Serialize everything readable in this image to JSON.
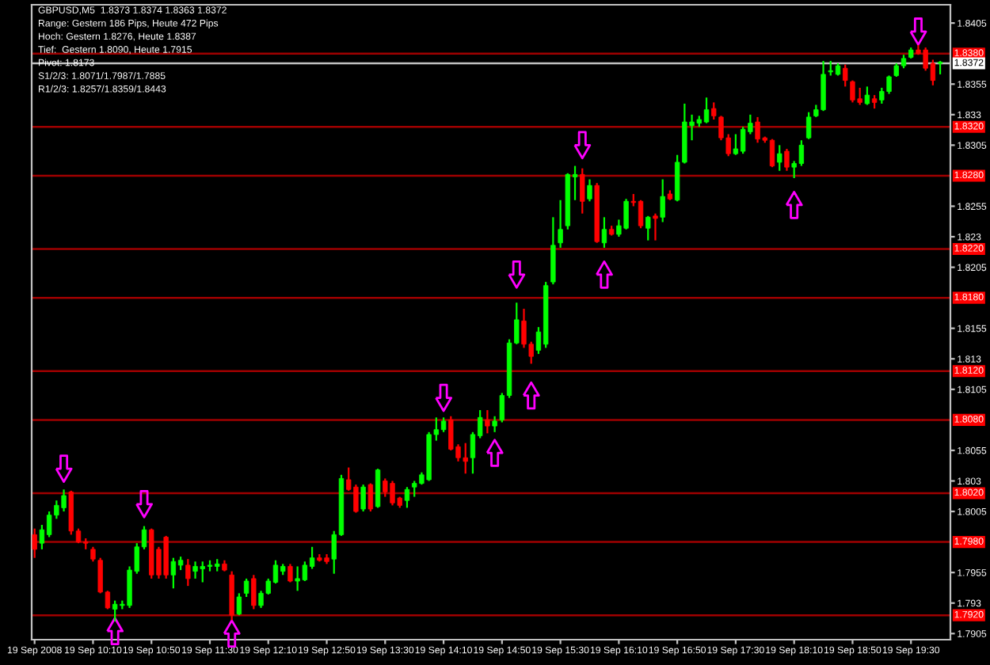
{
  "chart_data": {
    "type": "candlestick",
    "title": "GBPUSD,M5  1.8373 1.8374 1.8363 1.8372",
    "annotations": [
      "Range: Gestern 186 Pips, Heute 472 Pips",
      "Hoch: Gestern 1.8276, Heute 1.8387",
      "Tief:  Gestern 1.8090, Heute 1.7915",
      "Pivot: 1.8173",
      "S1/2/3: 1.8071/1.7987/1.7885",
      "R1/2/3: 1.8257/1.8359/1.8443"
    ],
    "categories": [
      "19 Sep 2008",
      null,
      null,
      null,
      null,
      null,
      null,
      null,
      "19 Sep 10:10",
      null,
      null,
      null,
      null,
      null,
      null,
      null,
      "19 Sep 10:50",
      null,
      null,
      null,
      null,
      null,
      null,
      null,
      "19 Sep 11:30",
      null,
      null,
      null,
      null,
      null,
      null,
      null,
      "19 Sep 12:10",
      null,
      null,
      null,
      null,
      null,
      null,
      null,
      "19 Sep 12:50",
      null,
      null,
      null,
      null,
      null,
      null,
      null,
      "19 Sep 13:30",
      null,
      null,
      null,
      null,
      null,
      null,
      null,
      "19 Sep 14:10",
      null,
      null,
      null,
      null,
      null,
      null,
      null,
      "19 Sep 14:50",
      null,
      null,
      null,
      null,
      null,
      null,
      null,
      "19 Sep 15:30",
      null,
      null,
      null,
      null,
      null,
      null,
      null,
      "19 Sep 16:10",
      null,
      null,
      null,
      null,
      null,
      null,
      null,
      "19 Sep 16:50",
      null,
      null,
      null,
      null,
      null,
      null,
      null,
      "19 Sep 17:30",
      null,
      null,
      null,
      null,
      null,
      null,
      null,
      "19 Sep 18:10",
      null,
      null,
      null,
      null,
      null,
      null,
      null,
      "19 Sep 18:50",
      null,
      null,
      null,
      null,
      null,
      null,
      null,
      "19 Sep 19:30",
      null,
      null,
      null,
      null
    ],
    "ohlc": [
      [
        1.7986,
        1.7991,
        1.7967,
        1.7974
      ],
      [
        1.7979,
        1.7994,
        1.7974,
        1.799
      ],
      [
        1.7986,
        1.8005,
        1.7984,
        1.8002
      ],
      [
        1.8002,
        1.8014,
        1.7999,
        1.801
      ],
      [
        1.8008,
        1.8023,
        1.8005,
        1.8018
      ],
      [
        1.8021,
        1.8022,
        1.7986,
        1.7989
      ],
      [
        1.7989,
        1.7991,
        1.7979,
        1.798
      ],
      [
        1.798,
        1.7983,
        1.7974,
        1.7979
      ],
      [
        1.7974,
        1.7976,
        1.7964,
        1.7966
      ],
      [
        1.7965,
        1.7967,
        1.7938,
        1.7939
      ],
      [
        1.7939,
        1.794,
        1.7925,
        1.7926
      ],
      [
        1.7925,
        1.7932,
        1.7915,
        1.7929
      ],
      [
        1.7928,
        1.7932,
        1.7925,
        1.7929
      ],
      [
        1.7928,
        1.796,
        1.7926,
        1.7957
      ],
      [
        1.7956,
        1.7979,
        1.7954,
        1.7976
      ],
      [
        1.7976,
        1.7993,
        1.7974,
        1.799
      ],
      [
        1.799,
        1.7991,
        1.795,
        1.7953
      ],
      [
        1.7974,
        1.7976,
        1.795,
        1.7953
      ],
      [
        1.7984,
        1.7985,
        1.795,
        1.7953
      ],
      [
        1.7953,
        1.7967,
        1.7942,
        1.7964
      ],
      [
        1.7961,
        1.7968,
        1.7957,
        1.7965
      ],
      [
        1.7961,
        1.7966,
        1.7944,
        1.795
      ],
      [
        1.7956,
        1.7964,
        1.795,
        1.796
      ],
      [
        1.7958,
        1.7964,
        1.7947,
        1.796
      ],
      [
        1.796,
        1.7965,
        1.7956,
        1.7961
      ],
      [
        1.796,
        1.7966,
        1.7956,
        1.7962
      ],
      [
        1.7962,
        1.7965,
        1.7956,
        1.7957
      ],
      [
        1.7953,
        1.7956,
        1.7916,
        1.792
      ],
      [
        1.7921,
        1.7938,
        1.792,
        1.7935
      ],
      [
        1.7938,
        1.795,
        1.7935,
        1.7948
      ],
      [
        1.795,
        1.7953,
        1.7925,
        1.7928
      ],
      [
        1.7928,
        1.794,
        1.7926,
        1.7938
      ],
      [
        1.7938,
        1.795,
        1.7937,
        1.7948
      ],
      [
        1.7947,
        1.7965,
        1.7946,
        1.7961
      ],
      [
        1.7956,
        1.7962,
        1.7953,
        1.796
      ],
      [
        1.796,
        1.7962,
        1.7947,
        1.7948
      ],
      [
        1.7948,
        1.796,
        1.794,
        1.795
      ],
      [
        1.7949,
        1.7964,
        1.7948,
        1.7961
      ],
      [
        1.796,
        1.7976,
        1.7958,
        1.7967
      ],
      [
        1.7967,
        1.797,
        1.7964,
        1.7965
      ],
      [
        1.7967,
        1.797,
        1.7962,
        1.7964
      ],
      [
        1.7966,
        1.7989,
        1.7954,
        1.7986
      ],
      [
        1.7986,
        1.8035,
        1.7985,
        1.8032
      ],
      [
        1.8031,
        1.8041,
        1.8022,
        1.8023
      ],
      [
        1.8025,
        1.8027,
        1.8004,
        1.8005
      ],
      [
        1.8007,
        1.8027,
        1.8005,
        1.8025
      ],
      [
        1.8027,
        1.8028,
        1.8005,
        1.8007
      ],
      [
        1.8009,
        1.804,
        1.8008,
        1.8039
      ],
      [
        1.803,
        1.8032,
        1.8017,
        1.8021
      ],
      [
        1.8028,
        1.803,
        1.801,
        1.8012
      ],
      [
        1.8016,
        1.8017,
        1.8008,
        1.801
      ],
      [
        1.8014,
        1.8025,
        1.8008,
        1.8023
      ],
      [
        1.8025,
        1.803,
        1.8017,
        1.8028
      ],
      [
        1.8028,
        1.8037,
        1.8027,
        1.8035
      ],
      [
        1.8031,
        1.807,
        1.803,
        1.8068
      ],
      [
        1.8068,
        1.8082,
        1.8063,
        1.8072
      ],
      [
        1.8072,
        1.8082,
        1.807,
        1.8079
      ],
      [
        1.808,
        1.8083,
        1.8055,
        1.8056
      ],
      [
        1.8058,
        1.806,
        1.8046,
        1.8049
      ],
      [
        1.8049,
        1.8061,
        1.8036,
        1.8046
      ],
      [
        1.8049,
        1.807,
        1.8036,
        1.8068
      ],
      [
        1.8067,
        1.8088,
        1.8065,
        1.8082
      ],
      [
        1.808,
        1.8088,
        1.8069,
        1.8075
      ],
      [
        1.8075,
        1.8083,
        1.807,
        1.8079
      ],
      [
        1.808,
        1.8102,
        1.8078,
        1.81
      ],
      [
        1.81,
        1.8146,
        1.8098,
        1.8143
      ],
      [
        1.8143,
        1.8176,
        1.8142,
        1.8162
      ],
      [
        1.8161,
        1.8171,
        1.8139,
        1.8142
      ],
      [
        1.8142,
        1.8144,
        1.8126,
        1.8132
      ],
      [
        1.8137,
        1.8156,
        1.8134,
        1.8152
      ],
      [
        1.8142,
        1.8193,
        1.8139,
        1.819
      ],
      [
        1.8193,
        1.8246,
        1.8191,
        1.8223
      ],
      [
        1.8225,
        1.826,
        1.8221,
        1.8236
      ],
      [
        1.8239,
        1.8282,
        1.8236,
        1.8281
      ],
      [
        1.8279,
        1.8288,
        1.826,
        1.8281
      ],
      [
        1.8281,
        1.8286,
        1.8249,
        1.8259
      ],
      [
        1.8261,
        1.8277,
        1.8259,
        1.8272
      ],
      [
        1.8272,
        1.8274,
        1.8225,
        1.8226
      ],
      [
        1.8225,
        1.8246,
        1.8221,
        1.8236
      ],
      [
        1.8236,
        1.8239,
        1.8231,
        1.8232
      ],
      [
        1.8232,
        1.8244,
        1.823,
        1.8239
      ],
      [
        1.8237,
        1.8261,
        1.8236,
        1.8259
      ],
      [
        1.8259,
        1.8265,
        1.8255,
        1.8258
      ],
      [
        1.8259,
        1.826,
        1.8237,
        1.8239
      ],
      [
        1.8237,
        1.8247,
        1.8227,
        1.8246
      ],
      [
        1.8247,
        1.8249,
        1.8227,
        1.8245
      ],
      [
        1.8246,
        1.8277,
        1.8242,
        1.8263
      ],
      [
        1.8265,
        1.8268,
        1.826,
        1.8261
      ],
      [
        1.826,
        1.8297,
        1.8259,
        1.8291
      ],
      [
        1.8291,
        1.8339,
        1.829,
        1.8324
      ],
      [
        1.8321,
        1.833,
        1.8309,
        1.8324
      ],
      [
        1.8323,
        1.8329,
        1.832,
        1.8326
      ],
      [
        1.8324,
        1.8344,
        1.8323,
        1.8334
      ],
      [
        1.8335,
        1.834,
        1.8326,
        1.8329
      ],
      [
        1.8328,
        1.8329,
        1.8309,
        1.8311
      ],
      [
        1.8311,
        1.8314,
        1.8296,
        1.8298
      ],
      [
        1.8298,
        1.8314,
        1.8297,
        1.8302
      ],
      [
        1.83,
        1.832,
        1.8298,
        1.8318
      ],
      [
        1.8316,
        1.833,
        1.8314,
        1.8323
      ],
      [
        1.8324,
        1.8328,
        1.8307,
        1.831
      ],
      [
        1.8311,
        1.8312,
        1.8307,
        1.8309
      ],
      [
        1.8309,
        1.831,
        1.8287,
        1.8288
      ],
      [
        1.8291,
        1.8305,
        1.8284,
        1.8298
      ],
      [
        1.83,
        1.8302,
        1.8284,
        1.8287
      ],
      [
        1.8287,
        1.8292,
        1.8278,
        1.829
      ],
      [
        1.829,
        1.8309,
        1.8288,
        1.8305
      ],
      [
        1.8311,
        1.8332,
        1.831,
        1.8328
      ],
      [
        1.8329,
        1.8338,
        1.8328,
        1.8334
      ],
      [
        1.8334,
        1.8374,
        1.8333,
        1.8363
      ],
      [
        1.8365,
        1.8374,
        1.8362,
        1.8366
      ],
      [
        1.8363,
        1.8372,
        1.8362,
        1.837
      ],
      [
        1.8368,
        1.8371,
        1.8353,
        1.8358
      ],
      [
        1.8357,
        1.8358,
        1.834,
        1.8342
      ],
      [
        1.8343,
        1.8352,
        1.8338,
        1.834
      ],
      [
        1.8339,
        1.8353,
        1.8338,
        1.8346
      ],
      [
        1.8343,
        1.8346,
        1.8335,
        1.834
      ],
      [
        1.8342,
        1.8352,
        1.8339,
        1.8349
      ],
      [
        1.8349,
        1.8362,
        1.8347,
        1.8361
      ],
      [
        1.8362,
        1.8372,
        1.8361,
        1.837
      ],
      [
        1.837,
        1.8379,
        1.8368,
        1.8376
      ],
      [
        1.8377,
        1.8385,
        1.8376,
        1.8383
      ],
      [
        1.8383,
        1.8387,
        1.8379,
        1.838
      ],
      [
        1.8383,
        1.8385,
        1.8366,
        1.8368
      ],
      [
        1.8372,
        1.8375,
        1.8354,
        1.8358
      ],
      [
        1.8373,
        1.8374,
        1.8363,
        1.8372
      ]
    ],
    "colors": [
      "#ff0000",
      "#00ff00",
      "#00ff00",
      "#00ff00",
      "#00ff00",
      "#ff0000",
      "#ff0000",
      "#ff0000",
      "#ff0000",
      "#ff0000",
      "#ff0000",
      "#00ff00",
      "#00ff00",
      "#00ff00",
      "#00ff00",
      "#00ff00",
      "#ff0000",
      "#ff0000",
      "#ff0000",
      "#00ff00",
      "#00ff00",
      "#ff0000",
      "#00ff00",
      "#00ff00",
      "#00ff00",
      "#00ff00",
      "#ff0000",
      "#ff0000",
      "#00ff00",
      "#00ff00",
      "#ff0000",
      "#00ff00",
      "#00ff00",
      "#00ff00",
      "#00ff00",
      "#ff0000",
      "#00ff00",
      "#00ff00",
      "#00ff00",
      "#ff0000",
      "#ff0000",
      "#00ff00",
      "#00ff00",
      "#ff0000",
      "#ff0000",
      "#00ff00",
      "#ff0000",
      "#00ff00",
      "#ff0000",
      "#ff0000",
      "#ff0000",
      "#00ff00",
      "#00ff00",
      "#00ff00",
      "#00ff00",
      "#00ff00",
      "#00ff00",
      "#ff0000",
      "#ff0000",
      "#ff0000",
      "#00ff00",
      "#00ff00",
      "#ff0000",
      "#00ff00",
      "#00ff00",
      "#00ff00",
      "#00ff00",
      "#ff0000",
      "#ff0000",
      "#00ff00",
      "#00ff00",
      "#00ff00",
      "#00ff00",
      "#00ff00",
      "#00ff00",
      "#ff0000",
      "#00ff00",
      "#ff0000",
      "#00ff00",
      "#ff0000",
      "#00ff00",
      "#00ff00",
      "#ff0000",
      "#ff0000",
      "#00ff00",
      "#ff0000",
      "#00ff00",
      "#ff0000",
      "#00ff00",
      "#00ff00",
      "#00ff00",
      "#00ff00",
      "#00ff00",
      "#ff0000",
      "#ff0000",
      "#ff0000",
      "#00ff00",
      "#00ff00",
      "#00ff00",
      "#ff0000",
      "#ff0000",
      "#ff0000",
      "#00ff00",
      "#ff0000",
      "#00ff00",
      "#00ff00",
      "#00ff00",
      "#00ff00",
      "#00ff00",
      "#00ff00",
      "#00ff00",
      "#ff0000",
      "#ff0000",
      "#ff0000",
      "#00ff00",
      "#ff0000",
      "#00ff00",
      "#00ff00",
      "#00ff00",
      "#00ff00",
      "#00ff00",
      "#ff0000",
      "#ff0000",
      "#ff0000",
      "#00ff00"
    ],
    "series": [
      {
        "type": "scatter",
        "color": "#ff00ff",
        "values": [
          null,
          null,
          null,
          null,
          1.804,
          null,
          null,
          null,
          null,
          null,
          null,
          1.7907,
          null,
          null,
          null,
          1.8011,
          null,
          null,
          null,
          null,
          null,
          null,
          null,
          null,
          null,
          null,
          null,
          1.7905,
          null,
          null,
          null,
          null,
          null,
          null,
          null,
          null,
          null,
          null,
          null,
          null,
          null,
          null,
          null,
          null,
          null,
          null,
          null,
          null,
          null,
          null,
          null,
          null,
          null,
          null,
          null,
          null,
          1.8098,
          null,
          null,
          null,
          null,
          null,
          null,
          1.8053,
          null,
          null,
          1.8199,
          null,
          1.81,
          null,
          null,
          null,
          null,
          null,
          null,
          1.8305,
          null,
          null,
          1.8199,
          null,
          null,
          null,
          null,
          null,
          null,
          null,
          null,
          null,
          null,
          null,
          null,
          null,
          null,
          null,
          null,
          null,
          null,
          null,
          null,
          null,
          null,
          null,
          null,
          null,
          1.8256,
          null,
          null,
          null,
          null,
          null,
          null,
          null,
          null,
          null,
          null,
          null,
          null,
          null,
          null,
          null,
          null,
          1.8398,
          null,
          null,
          null
        ]
      }
    ],
    "ylim": [
      1.79,
      1.842
    ],
    "yticks": [
      1.7905,
      1.793,
      1.7955,
      1.8005,
      1.803,
      1.8055,
      1.8105,
      1.813,
      1.8155,
      1.8205,
      1.823,
      1.8255,
      1.8305,
      1.833,
      1.8355,
      1.8405
    ],
    "ref_lines": [
      {
        "axis": "y",
        "value": 1.838,
        "label": "1.8380",
        "color": "#a00000"
      },
      {
        "axis": "y",
        "value": 1.832,
        "label": "1.8320",
        "color": "#a00000"
      },
      {
        "axis": "y",
        "value": 1.828,
        "label": "1.8280",
        "color": "#a00000"
      },
      {
        "axis": "y",
        "value": 1.822,
        "label": "1.8220",
        "color": "#a00000"
      },
      {
        "axis": "y",
        "value": 1.818,
        "label": "1.8180",
        "color": "#a00000"
      },
      {
        "axis": "y",
        "value": 1.812,
        "label": "1.8120",
        "color": "#a00000"
      },
      {
        "axis": "y",
        "value": 1.808,
        "label": "1.8080",
        "color": "#a00000"
      },
      {
        "axis": "y",
        "value": 1.802,
        "label": "1.8020",
        "color": "#a00000"
      },
      {
        "axis": "y",
        "value": 1.798,
        "label": "1.7980",
        "color": "#a00000"
      },
      {
        "axis": "y",
        "value": 1.792,
        "label": "1.7920",
        "color": "#a00000"
      },
      {
        "axis": "y",
        "value": 1.8372,
        "label": "1.8372",
        "color": "#c0c0c0"
      }
    ]
  }
}
